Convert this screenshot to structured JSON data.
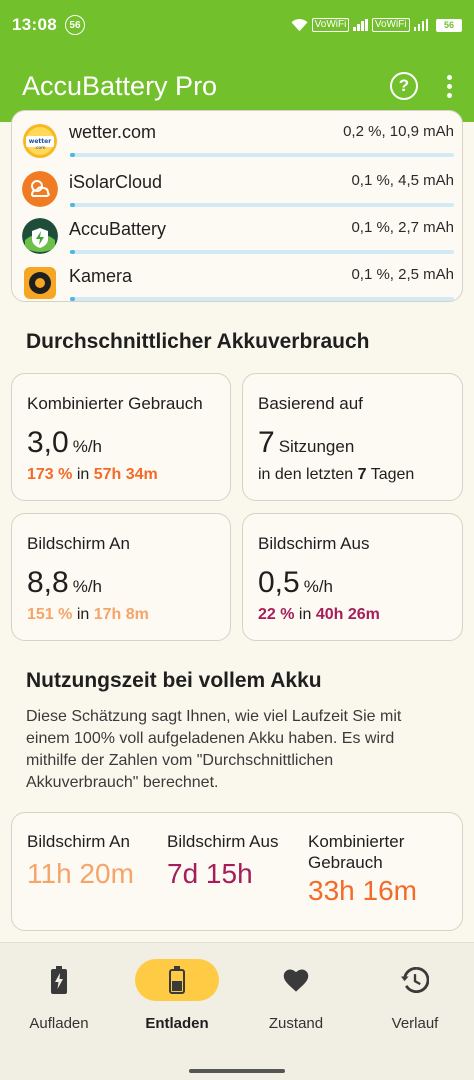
{
  "status_bar": {
    "time": "13:08",
    "notification_badge": "56",
    "wifi_label_1": "VoWiFi",
    "wifi_label_2": "VoWiFi",
    "battery": "56"
  },
  "app_bar": {
    "title": "AccuBattery Pro",
    "help_icon": "help-circle-icon",
    "more_icon": "more-vert-icon"
  },
  "app_usage": [
    {
      "name": "wetter.com",
      "value": "0,2 %, 10,9 mAh",
      "icon": "wetter-logo",
      "fraction": 0.012
    },
    {
      "name": "iSolarCloud",
      "value": "0,1 %, 4,5 mAh",
      "icon": "solar-cloud-icon",
      "fraction": 0.006
    },
    {
      "name": "AccuBattery",
      "value": "0,1 %, 2,7 mAh",
      "icon": "accubattery-icon",
      "fraction": 0.004
    },
    {
      "name": "Kamera",
      "value": "0,1 %, 2,5 mAh",
      "icon": "camera-icon",
      "fraction": 0.004
    }
  ],
  "avg_section": {
    "title": "Durchschnittlicher Akkuverbrauch",
    "combined": {
      "label": "Kombinierter Gebrauch",
      "value": "3,0",
      "unit": "%/h",
      "percent": "173 %",
      "in": "in",
      "duration": "57h 34m"
    },
    "based_on": {
      "label": "Basierend auf",
      "value": "7",
      "unit": "Sitzungen",
      "prefix": "in den letzten",
      "days": "7",
      "suffix": "Tagen"
    },
    "screen_on": {
      "label": "Bildschirm An",
      "value": "8,8",
      "unit": "%/h",
      "percent": "151 %",
      "in": "in",
      "duration": "17h 8m"
    },
    "screen_off": {
      "label": "Bildschirm Aus",
      "value": "0,5",
      "unit": "%/h",
      "percent": "22 %",
      "in": "in",
      "duration": "40h 26m"
    }
  },
  "full_charge_section": {
    "title": "Nutzungszeit bei vollem Akku",
    "description": "Diese Schätzung sagt Ihnen, wie viel Laufzeit Sie mit einem 100% voll aufgeladenen Akku haben. Es wird mithilfe der Zahlen vom \"Durchschnittlichen Akkuverbrauch\" berechnet.",
    "screen_on": {
      "label": "Bildschirm An",
      "value": "11h 20m"
    },
    "screen_off": {
      "label": "Bildschirm Aus",
      "value": "7d 15h"
    },
    "combined": {
      "label_1": "Kombinierter",
      "label_2": "Gebrauch",
      "value": "33h 16m"
    }
  },
  "colors": {
    "accent_green": "#72C02C",
    "orange": "#F26B2A",
    "peach": "#F5A46A",
    "magenta": "#A51E5A",
    "nav_active": "#FFCB45",
    "usage_bar": "#4FB4E6"
  },
  "bottom_nav": [
    {
      "label": "Aufladen",
      "icon": "battery-charging-icon",
      "active": false
    },
    {
      "label": "Entladen",
      "icon": "battery-discharging-icon",
      "active": true
    },
    {
      "label": "Zustand",
      "icon": "heart-icon",
      "active": false
    },
    {
      "label": "Verlauf",
      "icon": "history-icon",
      "active": false
    }
  ]
}
